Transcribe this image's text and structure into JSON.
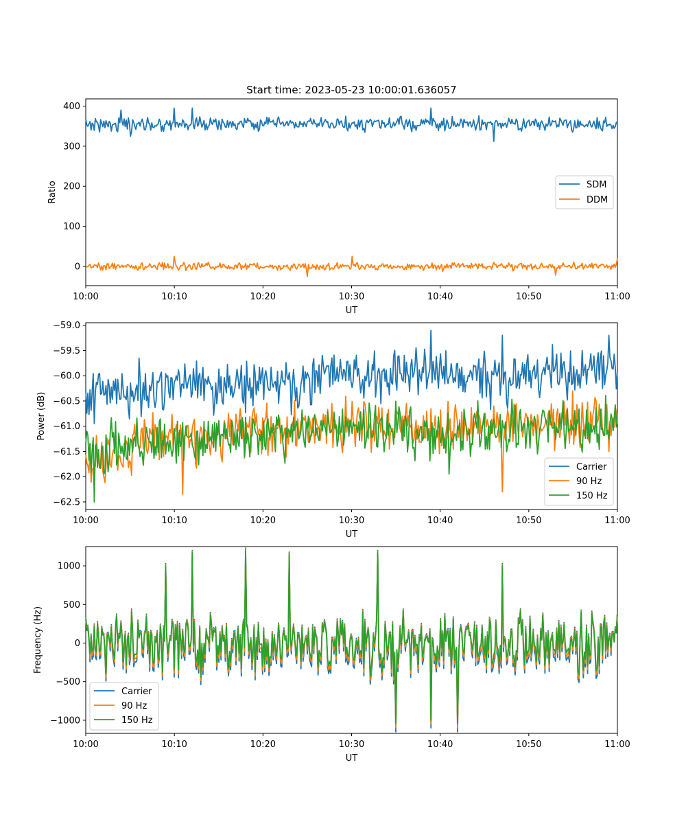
{
  "chart_data": [
    {
      "type": "line",
      "title": "Start time: 2023-05-23 10:00:01.636057",
      "xlabel": "UT",
      "ylabel": "Ratio",
      "x_range": [
        "10:00",
        "11:00"
      ],
      "x_ticks": [
        "10:00",
        "10:10",
        "10:20",
        "10:30",
        "10:40",
        "10:50",
        "11:00"
      ],
      "ylim": [
        -48,
        418
      ],
      "y_ticks": [
        0,
        100,
        200,
        300,
        400
      ],
      "y_tick_labels": [
        "0",
        "100",
        "200",
        "300",
        "400"
      ],
      "grid": false,
      "legend_position": "center-right",
      "series": [
        {
          "name": "SDM",
          "color": "#1f77b4",
          "mean": 355,
          "spread": 14,
          "points": [
            [
              "10:04",
              390
            ],
            [
              "10:05",
              325
            ],
            [
              "10:10",
              395
            ],
            [
              "10:12",
              395
            ],
            [
              "10:39",
              395
            ],
            [
              "10:46",
              312
            ],
            [
              "11:00",
              360
            ]
          ]
        },
        {
          "name": "DDM",
          "color": "#ff7f0e",
          "mean": 0,
          "spread": 8,
          "points": [
            [
              "10:10",
              25
            ],
            [
              "10:25",
              -25
            ],
            [
              "10:30",
              25
            ],
            [
              "10:53",
              -22
            ],
            [
              "11:00",
              20
            ]
          ]
        }
      ]
    },
    {
      "type": "line",
      "title": "",
      "xlabel": "UT",
      "ylabel": "Power (dB)",
      "x_range": [
        "10:00",
        "11:00"
      ],
      "x_ticks": [
        "10:00",
        "10:10",
        "10:20",
        "10:30",
        "10:40",
        "10:50",
        "11:00"
      ],
      "ylim": [
        -62.65,
        -58.95
      ],
      "y_ticks": [
        -59.0,
        -59.5,
        -60.0,
        -60.5,
        -61.0,
        -61.5,
        -62.0,
        -62.5
      ],
      "y_tick_labels": [
        "−59.0",
        "−59.5",
        "−60.0",
        "−60.5",
        "−61.0",
        "−61.5",
        "−62.0",
        "−62.5"
      ],
      "grid": false,
      "legend_position": "bottom-right",
      "series": [
        {
          "name": "Carrier",
          "color": "#1f77b4",
          "trend": [
            [
              "10:00",
              -60.4
            ],
            [
              "10:10",
              -60.2
            ],
            [
              "10:20",
              -60.15
            ],
            [
              "10:30",
              -60.0
            ],
            [
              "10:40",
              -60.0
            ],
            [
              "10:50",
              -60.0
            ],
            [
              "11:00",
              -59.9
            ]
          ],
          "points": [
            [
              "10:01",
              -60.95
            ],
            [
              "10:06",
              -59.65
            ],
            [
              "10:39",
              -59.1
            ],
            [
              "10:47",
              -59.2
            ],
            [
              "10:59",
              -59.2
            ]
          ]
        },
        {
          "name": "90 Hz",
          "color": "#ff7f0e",
          "trend": [
            [
              "10:00",
              -61.7
            ],
            [
              "10:10",
              -61.2
            ],
            [
              "10:20",
              -61.1
            ],
            [
              "10:30",
              -60.9
            ],
            [
              "10:40",
              -61.1
            ],
            [
              "10:50",
              -60.95
            ],
            [
              "11:00",
              -60.9
            ]
          ],
          "points": [
            [
              "10:02",
              -62.0
            ],
            [
              "10:11",
              -62.35
            ],
            [
              "10:47",
              -62.3
            ],
            [
              "10:59",
              -61.5
            ]
          ]
        },
        {
          "name": "150 Hz",
          "color": "#2ca02c",
          "trend": [
            [
              "10:00",
              -61.5
            ],
            [
              "10:10",
              -61.3
            ],
            [
              "10:20",
              -61.2
            ],
            [
              "10:30",
              -61.0
            ],
            [
              "10:40",
              -61.2
            ],
            [
              "10:50",
              -61.0
            ],
            [
              "11:00",
              -60.95
            ]
          ],
          "points": [
            [
              "10:01",
              -62.5
            ],
            [
              "10:09",
              -61.55
            ],
            [
              "10:41",
              -61.95
            ],
            [
              "10:51",
              -61.55
            ]
          ]
        }
      ]
    },
    {
      "type": "line",
      "title": "",
      "xlabel": "UT",
      "ylabel": "Frequency (Hz)",
      "x_range": [
        "10:00",
        "11:00"
      ],
      "x_ticks": [
        "10:00",
        "10:10",
        "10:20",
        "10:30",
        "10:40",
        "10:50",
        "11:00"
      ],
      "ylim": [
        -1170,
        1250
      ],
      "y_ticks": [
        1000,
        500,
        0,
        -500,
        -1000
      ],
      "y_tick_labels": [
        "1000",
        "500",
        "0",
        "−500",
        "−1000"
      ],
      "grid": false,
      "legend_position": "bottom-left",
      "series": [
        {
          "name": "Carrier",
          "color": "#1f77b4",
          "offset": -100
        },
        {
          "name": "90 Hz",
          "color": "#ff7f0e",
          "offset": -50
        },
        {
          "name": "150 Hz",
          "color": "#2ca02c",
          "offset": 0
        }
      ],
      "shared_signal": {
        "spread": 300,
        "points": [
          [
            "10:09",
            1000
          ],
          [
            "10:12",
            1170
          ],
          [
            "10:18",
            1200
          ],
          [
            "10:23",
            1150
          ],
          [
            "10:33",
            1170
          ],
          [
            "10:35",
            -1050
          ],
          [
            "10:39",
            -1000
          ],
          [
            "10:42",
            -1050
          ],
          [
            "10:47",
            1000
          ]
        ]
      }
    }
  ]
}
